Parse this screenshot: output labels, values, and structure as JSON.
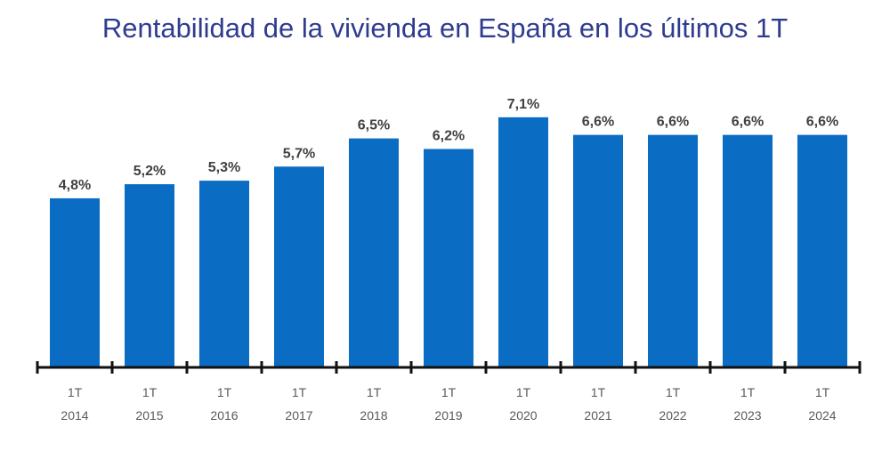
{
  "chart_data": {
    "type": "bar",
    "title": "Rentabilidad de la vivienda en España en los últimos 1T",
    "categories": [
      [
        "1T",
        "2014"
      ],
      [
        "1T",
        "2015"
      ],
      [
        "1T",
        "2016"
      ],
      [
        "1T",
        "2017"
      ],
      [
        "1T",
        "2018"
      ],
      [
        "1T",
        "2019"
      ],
      [
        "1T",
        "2020"
      ],
      [
        "1T",
        "2021"
      ],
      [
        "1T",
        "2022"
      ],
      [
        "1T",
        "2023"
      ],
      [
        "1T",
        "2024"
      ]
    ],
    "values": [
      4.8,
      5.2,
      5.3,
      5.7,
      6.5,
      6.2,
      7.1,
      6.6,
      6.6,
      6.6,
      6.6
    ],
    "data_labels": [
      "4,8%",
      "5,2%",
      "5,3%",
      "5,7%",
      "6,5%",
      "6,2%",
      "7,1%",
      "6,6%",
      "6,6%",
      "6,6%",
      "6,6%"
    ],
    "xlabel": "",
    "ylabel": "",
    "ylim": [
      0,
      7.5
    ],
    "grid": false,
    "bar_color": "#0b6cc4",
    "title_color": "#2f3b8f"
  }
}
